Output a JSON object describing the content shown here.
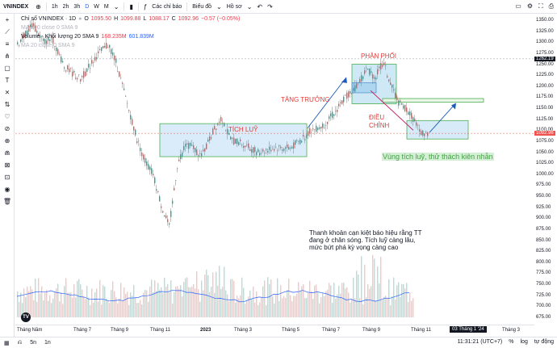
{
  "toolbar": {
    "symbol": "VNINDEX",
    "intervals": [
      "1h",
      "2h",
      "3h",
      "D",
      "W",
      "M"
    ],
    "active_interval": "D",
    "indicators_label": "Các chỉ báo",
    "chart_type_label": "Biểu đồ",
    "profile_label": "Hồ sơ"
  },
  "legend": {
    "title": "Chỉ số VNINDEX · 1D",
    "o_label": "O",
    "o": "1095.50",
    "h_label": "H",
    "h": "1099.88",
    "l_label": "L",
    "l": "1088.17",
    "c_label": "C",
    "c": "1092.96",
    "change": "−0.57 (−0.05%)",
    "ma": "MA 200 close 0 SMA 9",
    "volume_label": "Volume - Khối lượng 20 SMA 9",
    "volume_val": "168.235M",
    "volume_sma": "601.839M",
    "ma2": "MA 20 close 0 SMA 9"
  },
  "annotations": {
    "tich_luy": "TÍCH LUỸ",
    "tang_truong": "TĂNG TRƯỞNG",
    "phan_phoi": "PHÂN PHỐI",
    "dieu_chinh_1": "ĐIỀU",
    "dieu_chinh_2": "CHỈNH",
    "vung_tich_luy": "Vùng tích luỹ, thử thách kiên nhẫn",
    "note_1": "Thanh khoản cạn kiệt báo hiệu rằng TT",
    "note_2": "đang ở chân sóng. Tích luỹ càng lâu,",
    "note_3": "mức bứt phá kỳ vọng càng cao"
  },
  "yaxis": {
    "ticks": [
      "1350.00",
      "1325.00",
      "1300.00",
      "1275.00",
      "1250.00",
      "1225.00",
      "1200.00",
      "1175.00",
      "1150.00",
      "1125.00",
      "1100.00",
      "1075.00",
      "1050.00",
      "1025.00",
      "1000.00",
      "975.00",
      "950.00",
      "925.00",
      "900.00",
      "875.00",
      "850.00",
      "825.00",
      "800.00",
      "775.00",
      "750.00",
      "725.00",
      "700.00",
      "675.00"
    ],
    "price_label_1": "1262.19",
    "price_label_2": "1092.96"
  },
  "xaxis": {
    "ticks": [
      "Tháng Năm",
      "Tháng 7",
      "Tháng 9",
      "Tháng 11",
      "2023",
      "Tháng 3",
      "Tháng 5",
      "Tháng 7",
      "Tháng 9",
      "Tháng 11",
      "Tháng 3"
    ],
    "cursor_date": "03 Tháng 1 '24"
  },
  "bottombar": {
    "ranges": [
      "5n",
      "1n"
    ],
    "time": "11:31:21 (UTC+7)",
    "log": "log",
    "auto": "tự động"
  },
  "colors": {
    "up": "#26a69a",
    "down": "#ef5350",
    "box_fill": "#d6eaf8",
    "box_stroke": "#4caf50",
    "arrow": "#1e5bb8",
    "annotation_red": "#e53935",
    "annotation_green": "#66bb6a"
  }
}
